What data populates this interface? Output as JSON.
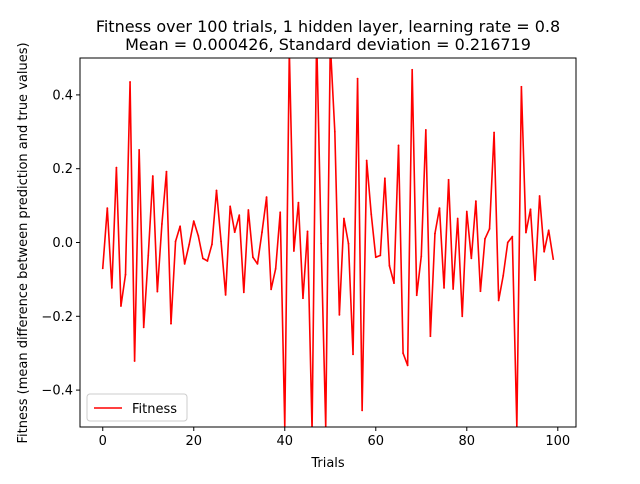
{
  "chart_data": {
    "type": "line",
    "title": "Fitness over 100 trials, 1 hidden layer, learning rate = 0.8",
    "subtitle": "Mean = 0.000426, Standard deviation = 0.216719",
    "xlabel": "Trials",
    "ylabel": "Fitness (mean difference between prediction and true values)",
    "xlim": [
      -5,
      104
    ],
    "ylim": [
      -0.5,
      0.5
    ],
    "x_ticks": [
      0,
      20,
      40,
      60,
      80,
      100
    ],
    "x_tick_labels": [
      "0",
      "20",
      "40",
      "60",
      "80",
      "100"
    ],
    "y_ticks": [
      -0.4,
      -0.2,
      0.0,
      0.2,
      0.4
    ],
    "y_tick_labels": [
      "−0.4",
      "−0.2",
      "0.0",
      "0.2",
      "0.4"
    ],
    "grid": false,
    "legend_position": "lower-left",
    "series": [
      {
        "name": "Fitness",
        "color": "#ff0000",
        "x": [
          0,
          1,
          2,
          3,
          4,
          5,
          6,
          7,
          8,
          9,
          10,
          11,
          12,
          13,
          14,
          15,
          16,
          17,
          18,
          19,
          20,
          21,
          22,
          23,
          24,
          25,
          26,
          27,
          28,
          29,
          30,
          31,
          32,
          33,
          34,
          35,
          36,
          37,
          38,
          39,
          40,
          41,
          42,
          43,
          44,
          45,
          46,
          47,
          48,
          49,
          50,
          51,
          52,
          53,
          54,
          55,
          56,
          57,
          58,
          59,
          60,
          61,
          62,
          63,
          64,
          65,
          66,
          67,
          68,
          69,
          70,
          71,
          72,
          73,
          74,
          75,
          76,
          77,
          78,
          79,
          80,
          81,
          82,
          83,
          84,
          85,
          86,
          87,
          88,
          89,
          90,
          91,
          92,
          93,
          94,
          95,
          96,
          97,
          98,
          99
        ],
        "values": [
          -0.07,
          0.093,
          -0.123,
          0.203,
          -0.172,
          -0.087,
          0.435,
          -0.321,
          0.251,
          -0.23,
          -0.035,
          0.18,
          -0.133,
          0.05,
          0.192,
          -0.22,
          0.003,
          0.044,
          -0.058,
          -0.005,
          0.058,
          0.018,
          -0.043,
          -0.05,
          -0.005,
          0.141,
          0.003,
          -0.142,
          0.098,
          0.028,
          0.074,
          -0.135,
          0.088,
          -0.04,
          -0.058,
          0.028,
          0.123,
          -0.127,
          -0.071,
          0.082,
          -0.5,
          0.52,
          -0.023,
          0.108,
          -0.151,
          0.03,
          -0.51,
          0.56,
          -0.003,
          -0.5,
          0.54,
          0.3,
          -0.196,
          0.065,
          -0.003,
          -0.303,
          0.444,
          -0.455,
          0.222,
          0.077,
          -0.04,
          -0.035,
          0.174,
          -0.063,
          -0.11,
          0.263,
          -0.3,
          -0.333,
          0.468,
          -0.143,
          -0.037,
          0.305,
          -0.254,
          0.024,
          0.093,
          -0.123,
          0.17,
          -0.126,
          0.065,
          -0.2,
          0.084,
          -0.043,
          0.112,
          -0.132,
          0.01,
          0.037,
          0.298,
          -0.157,
          -0.09,
          0.0,
          0.016,
          -0.5,
          0.422,
          0.027,
          0.09,
          -0.102,
          0.126,
          -0.025,
          0.033,
          -0.045
        ]
      }
    ]
  }
}
